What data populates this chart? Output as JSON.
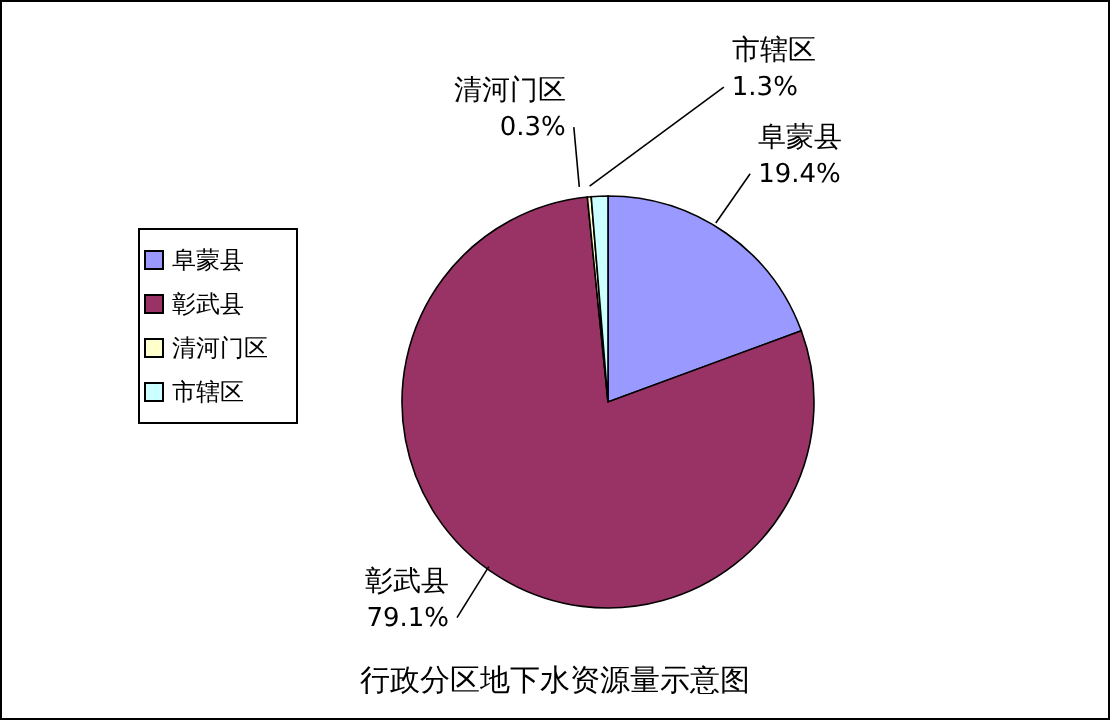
{
  "chart_data": {
    "type": "pie",
    "title": "行政分区地下水资源量示意图",
    "categories": [
      "阜蒙县",
      "彰武县",
      "清河门区",
      "市辖区"
    ],
    "values": [
      19.4,
      79.1,
      0.3,
      1.3
    ],
    "value_labels": [
      "19.4%",
      "79.1%",
      "0.3%",
      "1.3%"
    ],
    "colors": [
      "#9999ff",
      "#993366",
      "#ffffcc",
      "#ccffff"
    ],
    "legend": "left"
  }
}
